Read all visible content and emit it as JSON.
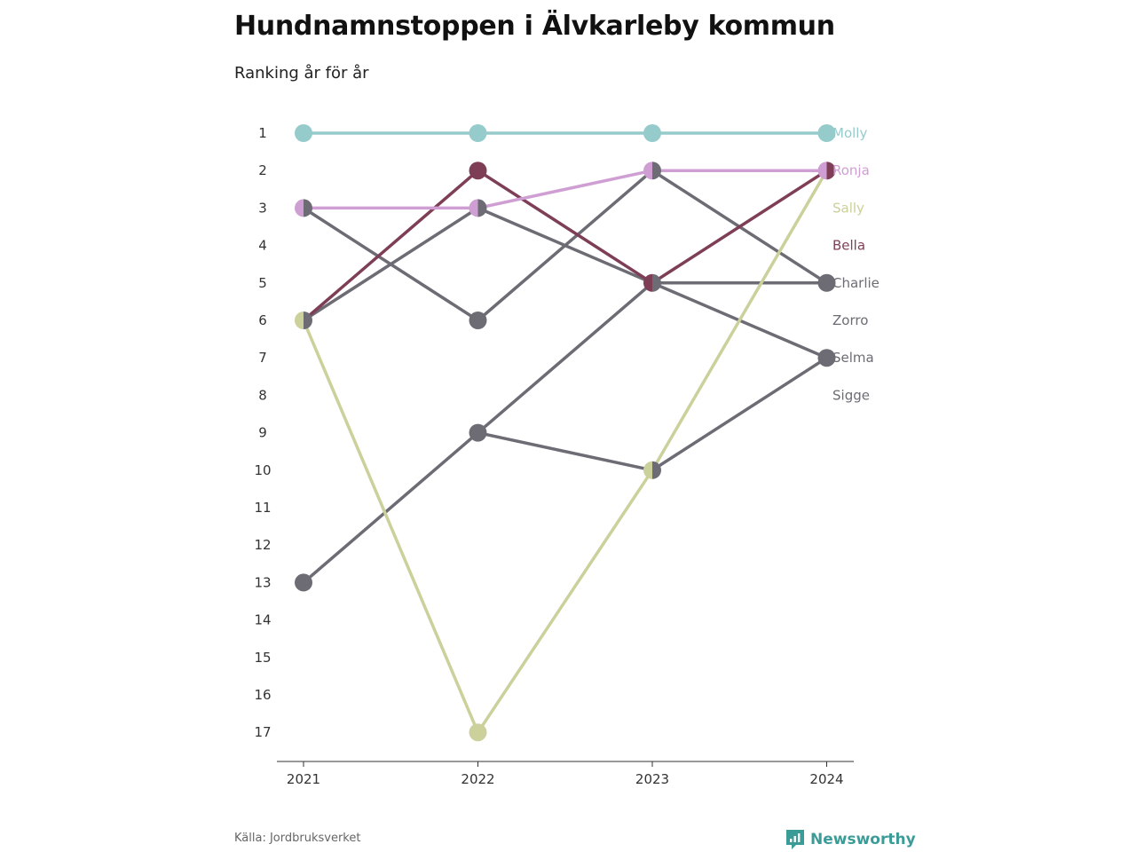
{
  "title": "Hundnamnstoppen i Älvkarleby kommun",
  "subtitle": "Ranking år för år",
  "source": "Källa: Jordbruksverket",
  "logo_text": "Newsworthy",
  "colors": {
    "brand": "#3b9c97",
    "axis": "#333333",
    "tick_text": "#333333"
  },
  "chart_data": {
    "type": "line",
    "x": [
      "2021",
      "2022",
      "2023",
      "2024"
    ],
    "y_ticks": [
      1,
      2,
      3,
      4,
      5,
      6,
      7,
      8,
      9,
      10,
      11,
      12,
      13,
      14,
      15,
      16,
      17
    ],
    "ylim": [
      1,
      17
    ],
    "y_inverted": true,
    "grid": false,
    "legend": "direct labels at right",
    "series": [
      {
        "name": "Molly",
        "color": "#96cbcc",
        "values": [
          1,
          1,
          1,
          1
        ]
      },
      {
        "name": "Ronja",
        "color": "#cf9fd3",
        "values": [
          3,
          3,
          2,
          2
        ]
      },
      {
        "name": "Sally",
        "color": "#ccd09a",
        "values": [
          6,
          17,
          10,
          2
        ]
      },
      {
        "name": "Bella",
        "color": "#7d3e56",
        "values": [
          6,
          2,
          5,
          2
        ]
      },
      {
        "name": "Charlie",
        "color": "#6d6b74",
        "values": [
          3,
          6,
          2,
          5
        ]
      },
      {
        "name": "Zorro",
        "color": "#6d6b74",
        "values": [
          6,
          3,
          5,
          5
        ]
      },
      {
        "name": "Selma",
        "color": "#6d6b74",
        "values": [
          13,
          9,
          5,
          7
        ]
      },
      {
        "name": "Sigge",
        "color": "#6d6b74",
        "values": [
          null,
          9,
          10,
          7
        ]
      }
    ]
  }
}
